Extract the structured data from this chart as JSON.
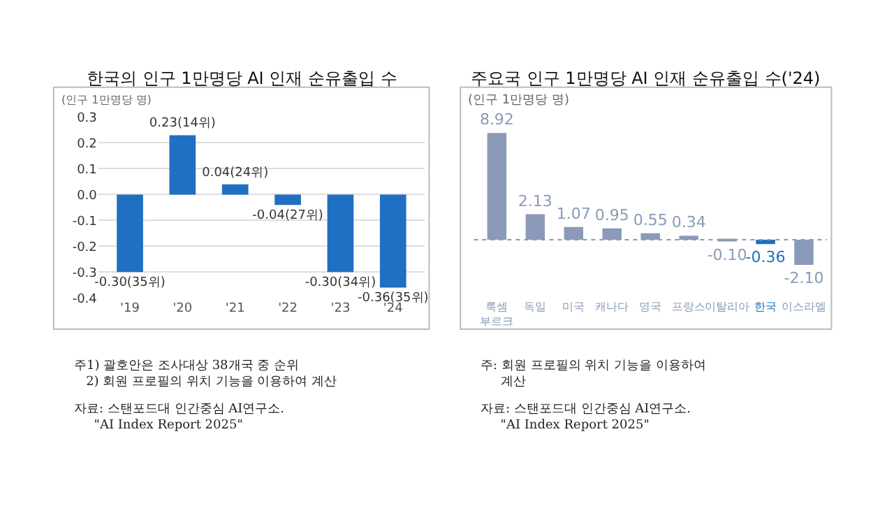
{
  "chart_data": [
    {
      "type": "bar",
      "title": "한국의 인구 1만명당 AI 인재 순유출입 수",
      "ylabel": "(인구 1만명당 명)",
      "categories": [
        "'19",
        "'20",
        "'21",
        "'22",
        "'23",
        "'24"
      ],
      "values": [
        -0.3,
        0.23,
        0.04,
        -0.04,
        -0.3,
        -0.36
      ],
      "value_labels": [
        "-0.30(35위)",
        "0.23(14위)",
        "0.04(24위)",
        "-0.04(27위)",
        "-0.30(34위)",
        "-0.36(35위)"
      ],
      "color": "#1f6fc2",
      "ylim": [
        -0.4,
        0.3
      ],
      "yticks": [
        0.3,
        0.2,
        0.1,
        {
          "value": 0,
          "label": "0.0"
        },
        -0.1,
        -0.2,
        -0.3,
        -0.4
      ],
      "grid": "y",
      "annotations": [
        "주1) 괄호안은 조사대상 38개국 중 순위\n   2) 회원 프로필의 위치 기능을 이용하여 계산",
        "자료: 스탠포드대 인간중심 AI연구소.\n     \"AI Index Report 2025\""
      ]
    },
    {
      "type": "bar",
      "title": "주요국 인구 1만명당 AI 인재 순유출입 수('24)",
      "ylabel": "(인구 1만명당 명)",
      "categories": [
        "룩셈\n부르크",
        "독일",
        "미국",
        "캐나다",
        "영국",
        "프랑스",
        "이탈리아",
        "한국",
        "이스라엘"
      ],
      "values": [
        8.92,
        2.13,
        1.07,
        0.95,
        0.55,
        0.34,
        -0.1,
        -0.36,
        -2.1
      ],
      "colors": [
        "#8a9ab8",
        "#8a9ab8",
        "#8a9ab8",
        "#8a9ab8",
        "#8a9ab8",
        "#8a9ab8",
        "#8a9ab8",
        "#1f6fc2",
        "#8a9ab8"
      ],
      "value_labels": [
        "8.92",
        "2.13",
        "1.07",
        "0.95",
        "0.55",
        "0.34",
        "-0.10",
        "-0.36",
        "-2.10"
      ],
      "ref_lines": [
        {
          "axis": "y",
          "value": 0,
          "color": "#8a9ab8",
          "line_style": "dotted"
        }
      ],
      "annotations": [
        "주: 회원 프로필의 위치 기능을 이용하여\n     계산",
        "자료: 스탠포드대 인간중심 AI연구소.\n     \"AI Index Report 2025\""
      ]
    }
  ]
}
